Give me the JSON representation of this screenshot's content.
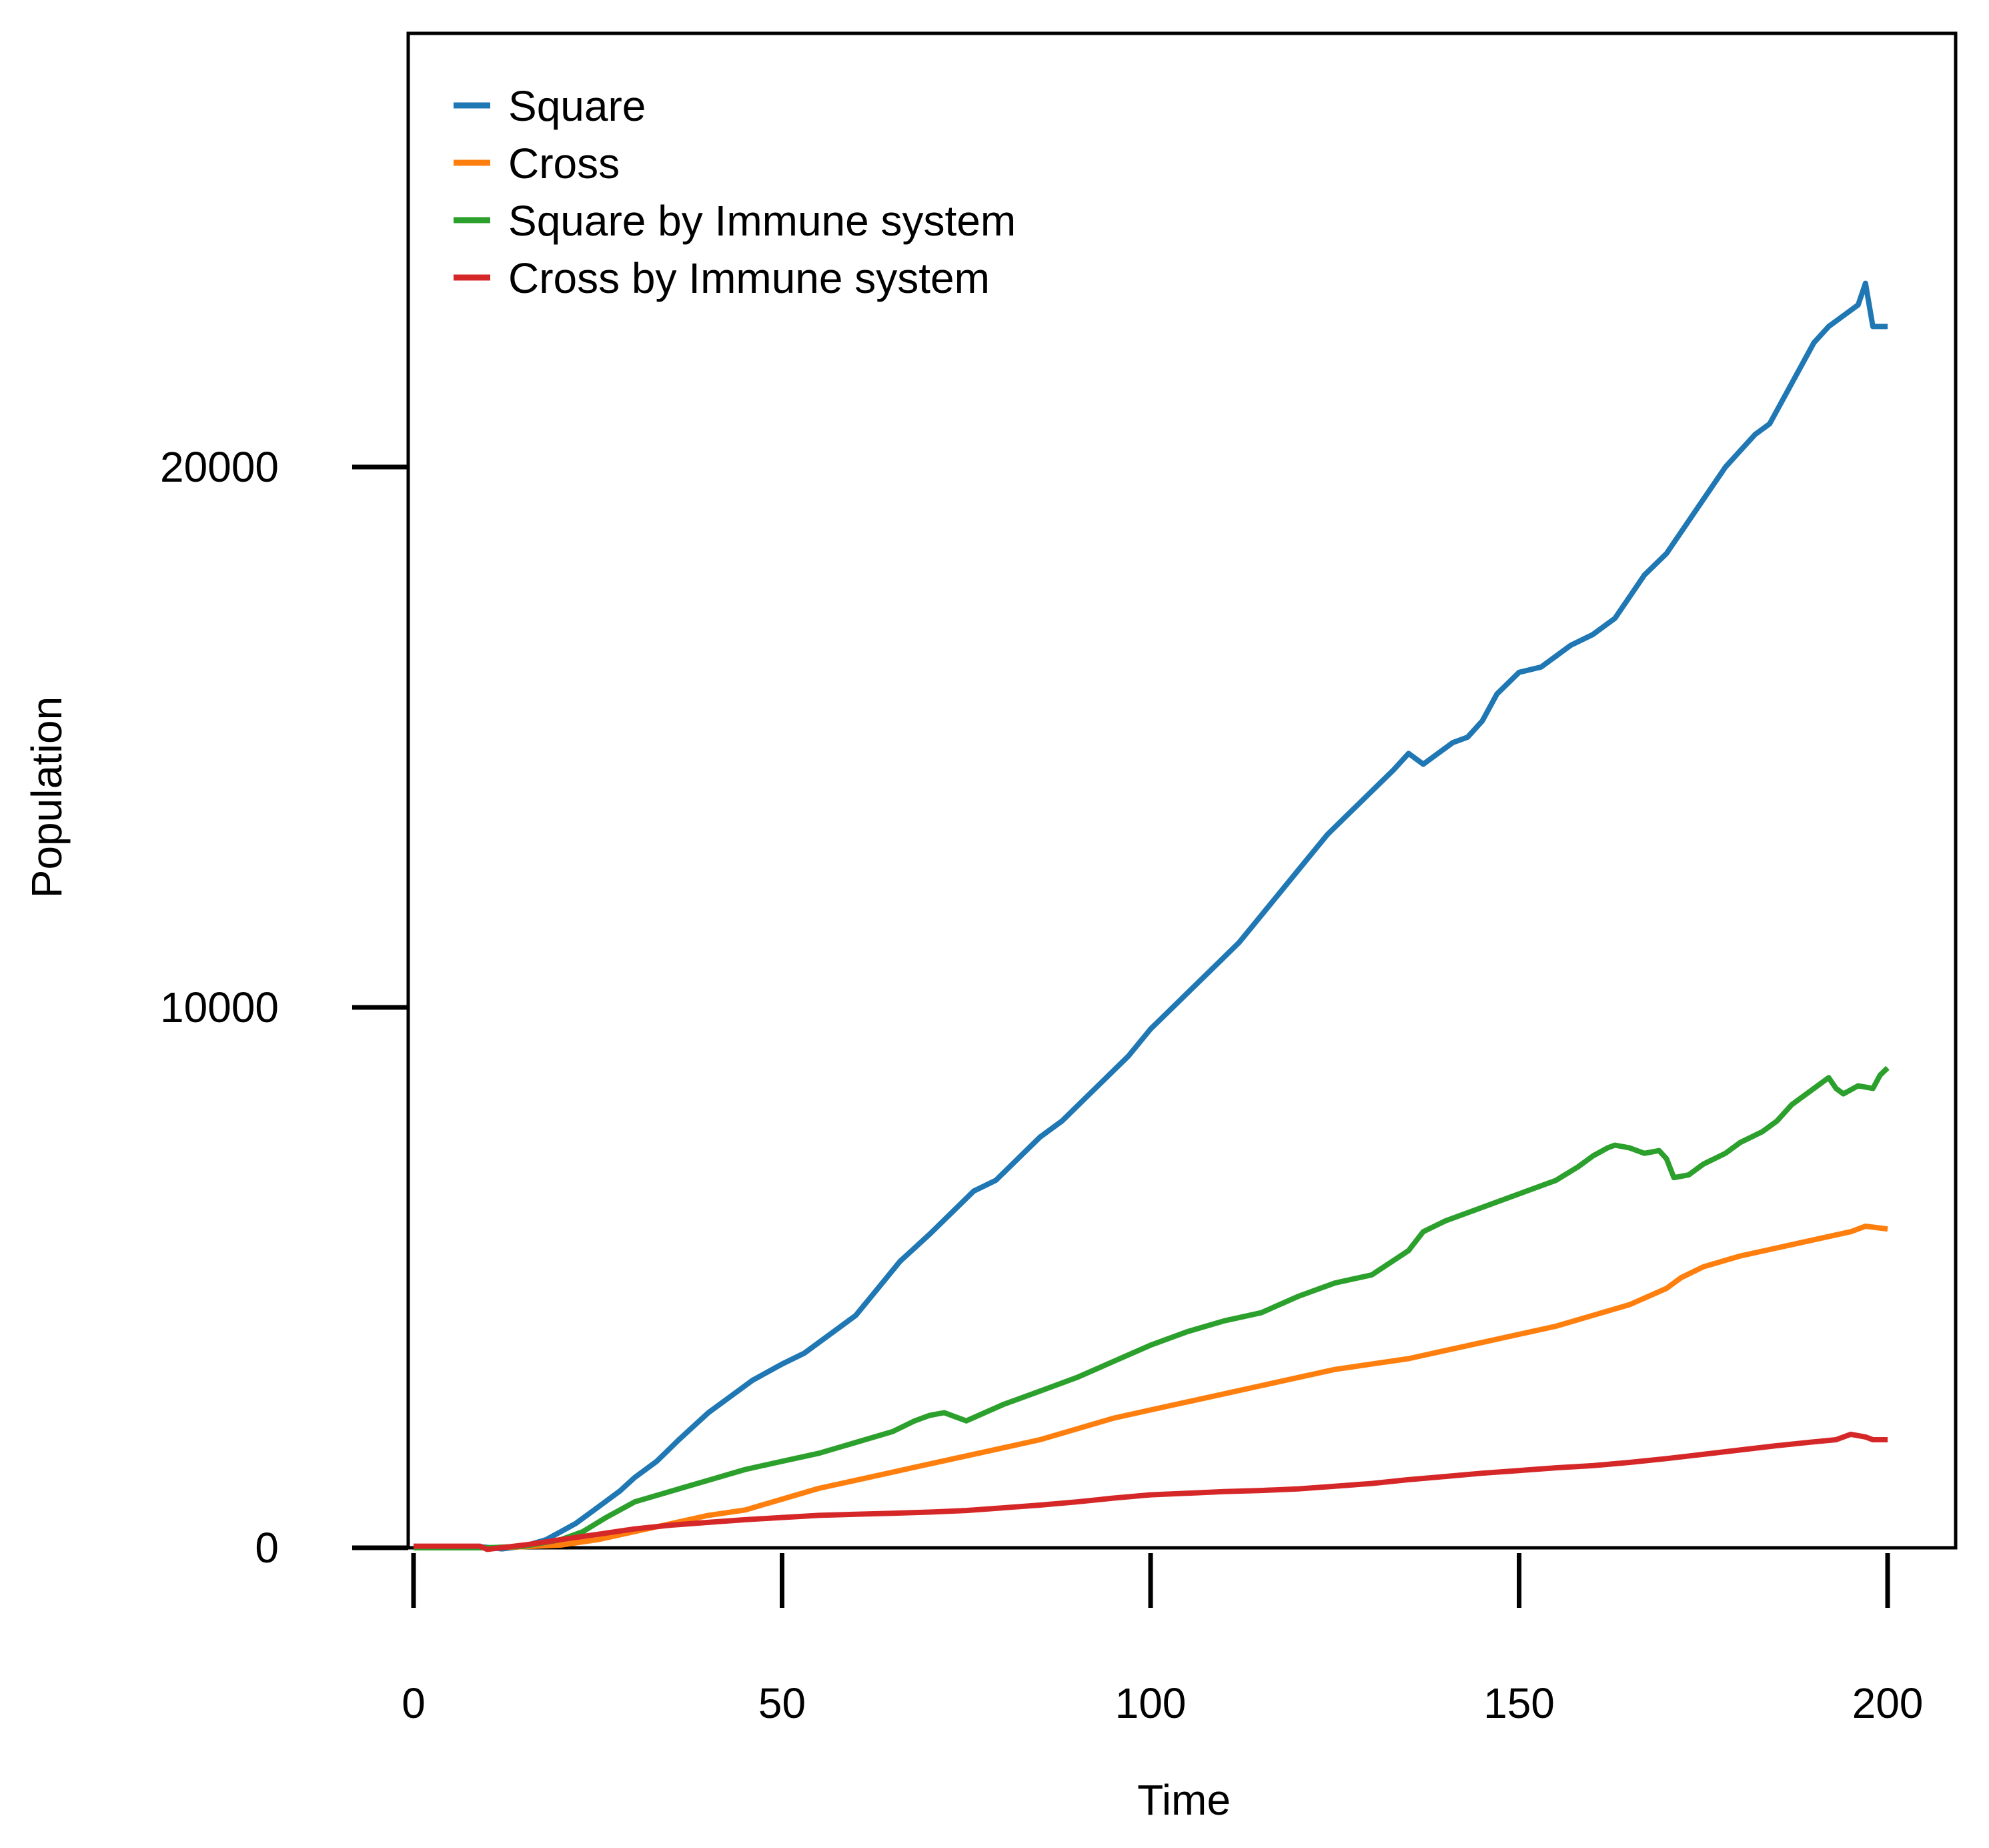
{
  "chart_data": {
    "type": "line",
    "title": "",
    "xlabel": "Time",
    "ylabel": "Population",
    "xlim": [
      0,
      201
    ],
    "ylim": [
      0,
      28000
    ],
    "xticks": [
      0,
      50,
      100,
      150,
      200
    ],
    "yticks": [
      0,
      10000,
      20000
    ],
    "grid": false,
    "legend_position": "top-left",
    "series": [
      {
        "name": "Square",
        "color": "#1f77b4",
        "x": [
          0,
          5,
          9,
          12,
          15,
          18,
          20,
          22,
          25,
          28,
          30,
          33,
          36,
          40,
          43,
          46,
          50,
          53,
          56,
          60,
          63,
          66,
          70,
          73,
          76,
          79,
          82,
          85,
          88,
          91,
          94,
          97,
          100,
          103,
          106,
          109,
          112,
          115,
          118,
          121,
          124,
          127,
          130,
          133,
          135,
          137,
          139,
          141,
          143,
          145,
          147,
          150,
          153,
          155,
          157,
          160,
          163,
          165,
          167,
          170,
          172,
          174,
          176,
          178,
          180,
          182,
          184,
          186,
          188,
          190,
          192,
          194,
          196,
          197,
          198,
          199,
          200
        ],
        "values": [
          20,
          20,
          20,
          -20,
          30,
          150,
          300,
          450,
          750,
          1050,
          1300,
          1600,
          2000,
          2500,
          2800,
          3100,
          3400,
          3600,
          3900,
          4300,
          4800,
          5300,
          5800,
          6200,
          6600,
          6800,
          7200,
          7600,
          7900,
          8300,
          8700,
          9100,
          9600,
          10000,
          10400,
          10800,
          11200,
          11700,
          12200,
          12700,
          13200,
          13600,
          14000,
          14400,
          14700,
          14500,
          14700,
          14900,
          15000,
          15300,
          15800,
          16200,
          16300,
          16500,
          16700,
          16900,
          17200,
          17600,
          18000,
          18400,
          18800,
          19200,
          19600,
          20000,
          20300,
          20600,
          20800,
          21300,
          21800,
          22300,
          22600,
          22800,
          23000,
          23400,
          22600,
          22600,
          22600
        ]
      },
      {
        "name": "Cross",
        "color": "#ff7f0e",
        "x": [
          0,
          10,
          15,
          20,
          25,
          30,
          35,
          40,
          45,
          50,
          55,
          60,
          65,
          70,
          75,
          80,
          85,
          90,
          95,
          100,
          105,
          110,
          115,
          120,
          125,
          130,
          135,
          140,
          145,
          150,
          155,
          160,
          165,
          170,
          172,
          175,
          180,
          185,
          190,
          195,
          197,
          200
        ],
        "values": [
          0,
          0,
          20,
          50,
          150,
          300,
          450,
          600,
          700,
          900,
          1100,
          1250,
          1400,
          1550,
          1700,
          1850,
          2000,
          2200,
          2400,
          2550,
          2700,
          2850,
          3000,
          3150,
          3300,
          3400,
          3500,
          3650,
          3800,
          3950,
          4100,
          4300,
          4500,
          4800,
          5000,
          5200,
          5400,
          5550,
          5700,
          5850,
          5950,
          5900
        ]
      },
      {
        "name": "Square by Immune system",
        "color": "#2ca02c",
        "x": [
          0,
          10,
          15,
          20,
          23,
          26,
          30,
          35,
          40,
          45,
          50,
          55,
          60,
          65,
          68,
          70,
          72,
          75,
          80,
          85,
          90,
          95,
          100,
          105,
          110,
          115,
          120,
          125,
          130,
          135,
          137,
          140,
          145,
          150,
          155,
          158,
          160,
          162,
          163,
          165,
          167,
          169,
          170,
          171,
          173,
          175,
          178,
          180,
          183,
          185,
          187,
          190,
          192,
          193,
          194,
          196,
          198,
          199,
          200
        ],
        "values": [
          0,
          0,
          30,
          150,
          300,
          550,
          850,
          1050,
          1250,
          1450,
          1600,
          1750,
          1950,
          2150,
          2350,
          2450,
          2500,
          2350,
          2650,
          2900,
          3150,
          3450,
          3750,
          4000,
          4200,
          4350,
          4650,
          4900,
          5050,
          5500,
          5850,
          6050,
          6300,
          6550,
          6800,
          7050,
          7250,
          7400,
          7450,
          7400,
          7300,
          7350,
          7200,
          6850,
          6900,
          7100,
          7300,
          7500,
          7700,
          7900,
          8200,
          8500,
          8700,
          8500,
          8400,
          8550,
          8500,
          8750,
          8880
        ]
      },
      {
        "name": "Cross by Immune system",
        "color": "#d62728",
        "x": [
          0,
          5,
          9,
          10,
          15,
          20,
          25,
          30,
          35,
          40,
          45,
          50,
          55,
          60,
          65,
          70,
          75,
          80,
          85,
          90,
          95,
          100,
          105,
          110,
          115,
          120,
          125,
          130,
          135,
          140,
          145,
          150,
          155,
          160,
          165,
          170,
          175,
          180,
          185,
          190,
          193,
          195,
          197,
          198,
          200
        ],
        "values": [
          30,
          30,
          30,
          -30,
          50,
          150,
          250,
          350,
          420,
          470,
          520,
          560,
          600,
          620,
          640,
          660,
          690,
          740,
          790,
          850,
          920,
          980,
          1010,
          1040,
          1060,
          1090,
          1140,
          1190,
          1260,
          1320,
          1380,
          1430,
          1480,
          1520,
          1580,
          1650,
          1730,
          1810,
          1890,
          1960,
          2000,
          2100,
          2050,
          2000,
          2000
        ]
      }
    ]
  }
}
